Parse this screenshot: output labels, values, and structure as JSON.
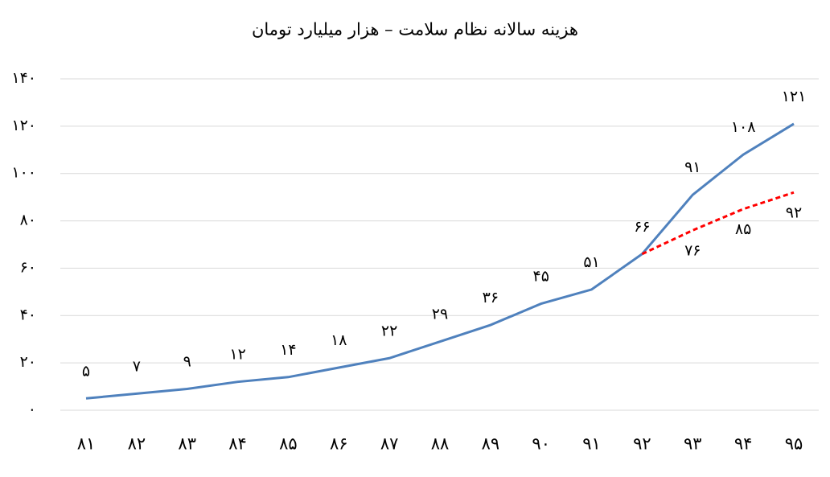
{
  "chart_data": {
    "type": "line",
    "title": "هزینه سالانه نظام سلامت – هزار میلیارد تومان",
    "categories": [
      "۸۱",
      "۸۲",
      "۸۳",
      "۸۴",
      "۸۵",
      "۸۶",
      "۸۷",
      "۸۸",
      "۸۹",
      "۹۰",
      "۹۱",
      "۹۲",
      "۹۳",
      "۹۴",
      "۹۵"
    ],
    "series": [
      {
        "color": "#4f81bd",
        "dashed": false,
        "label_side": "above",
        "values": [
          5,
          7,
          9,
          12,
          14,
          18,
          22,
          29,
          36,
          45,
          51,
          66,
          91,
          108,
          121
        ],
        "value_labels": [
          "۵",
          "۷",
          "۹",
          "۱۲",
          "۱۴",
          "۱۸",
          "۲۲",
          "۲۹",
          "۳۶",
          "۴۵",
          "۵۱",
          "۶۶",
          "۹۱",
          "۱۰۸",
          "۱۲۱"
        ]
      },
      {
        "color": "#ff0000",
        "dashed": true,
        "label_side": "below",
        "values": [
          null,
          null,
          null,
          null,
          null,
          null,
          null,
          null,
          null,
          null,
          null,
          66,
          76,
          85,
          92
        ],
        "value_labels": [
          null,
          null,
          null,
          null,
          null,
          null,
          null,
          null,
          null,
          null,
          null,
          null,
          "۷۶",
          "۸۵",
          "۹۲"
        ]
      }
    ],
    "ylim": [
      0,
      140
    ],
    "yticks": [
      {
        "value": 0,
        "label": "۰"
      },
      {
        "value": 20,
        "label": "۲۰"
      },
      {
        "value": 40,
        "label": "۴۰"
      },
      {
        "value": 60,
        "label": "۶۰"
      },
      {
        "value": 80,
        "label": "۸۰"
      },
      {
        "value": 100,
        "label": "۱۰۰"
      },
      {
        "value": 120,
        "label": "۱۲۰"
      },
      {
        "value": 140,
        "label": "۱۴۰"
      }
    ],
    "grid": true
  }
}
